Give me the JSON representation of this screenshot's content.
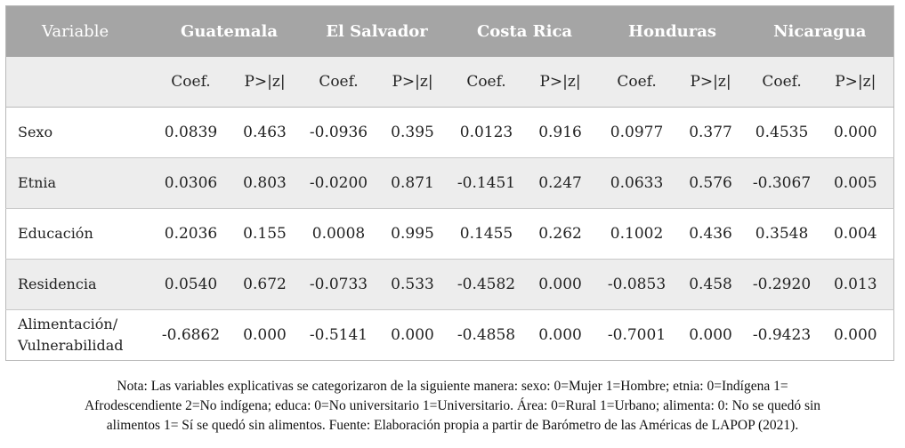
{
  "table": {
    "variable_header": "Variable",
    "countries": [
      "Guatemala",
      "El Salvador",
      "Costa Rica",
      "Honduras",
      "Nicaragua"
    ],
    "subheaders": [
      "Coef.",
      "P>|z|"
    ],
    "rows": [
      {
        "label": [
          "Sexo"
        ],
        "values": [
          "0.0839",
          "0.463",
          "-0.0936",
          "0.395",
          "0.0123",
          "0.916",
          "0.0977",
          "0.377",
          "0.4535",
          "0.000"
        ]
      },
      {
        "label": [
          "Etnia"
        ],
        "values": [
          "0.0306",
          "0.803",
          "-0.0200",
          "0.871",
          "-0.1451",
          "0.247",
          "0.0633",
          "0.576",
          "-0.3067",
          "0.005"
        ]
      },
      {
        "label": [
          "Educación"
        ],
        "values": [
          "0.2036",
          "0.155",
          "0.0008",
          "0.995",
          "0.1455",
          "0.262",
          "0.1002",
          "0.436",
          "0.3548",
          "0.004"
        ]
      },
      {
        "label": [
          "Residencia"
        ],
        "values": [
          "0.0540",
          "0.672",
          "-0.0733",
          "0.533",
          "-0.4582",
          "0.000",
          "-0.0853",
          "0.458",
          "-0.2920",
          "0.013"
        ]
      },
      {
        "label": [
          "Alimentación/",
          "Vulnerabilidad"
        ],
        "values": [
          "-0.6862",
          "0.000",
          "-0.5141",
          "0.000",
          "-0.4858",
          "0.000",
          "-0.7001",
          "0.000",
          "-0.9423",
          "0.000"
        ]
      }
    ]
  },
  "note": {
    "lines": [
      "Nota: Las variables explicativas se categorizaron de la siguiente manera: sexo: 0=Mujer 1=Hombre; etnia: 0=Indígena 1=",
      "Afrodescendiente 2=No indígena; educa: 0=No universitario 1=Universitario. Área: 0=Rural 1=Urbano; alimenta: 0: No se quedó sin",
      "alimentos 1= Sí se quedó sin alimentos. Fuente: Elaboración propia a partir de Barómetro de las Américas de LAPOP (2021)."
    ]
  }
}
